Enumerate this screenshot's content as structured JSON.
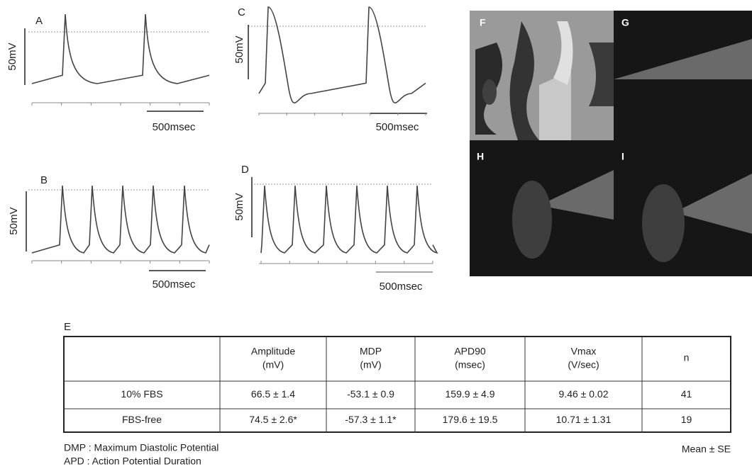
{
  "traces": [
    {
      "label": "A",
      "voltage_scale": "50mV",
      "time_scale": "500msec"
    },
    {
      "label": "B",
      "voltage_scale": "50mV",
      "time_scale": "500msec"
    },
    {
      "label": "C",
      "voltage_scale": "50mV",
      "time_scale": "500msec"
    },
    {
      "label": "D",
      "voltage_scale": "50mV",
      "time_scale": "500msec"
    }
  ],
  "images": [
    {
      "label": "F"
    },
    {
      "label": "G"
    },
    {
      "label": "H"
    },
    {
      "label": "I"
    }
  ],
  "table": {
    "label": "E",
    "header": [
      [
        "Amplitude",
        "(mV)"
      ],
      [
        "MDP",
        "(mV)"
      ],
      [
        "APD90",
        "(msec)"
      ],
      [
        "Vmax",
        "(V/sec)"
      ],
      [
        "n"
      ]
    ],
    "rows": [
      [
        "10% FBS",
        "66.5 ± 1.4",
        "-53.1 ± 0.9",
        "159.9 ± 4.9",
        "9.46 ± 0.02",
        "41"
      ],
      [
        "FBS-free",
        "74.5 ± 2.6*",
        "-57.3 ± 1.1*",
        "179.6 ± 19.5",
        "10.71 ± 1.31",
        "19"
      ]
    ]
  },
  "notes": [
    "DMP : Maximum Diastolic Potential",
    "APD : Action Potential Duration"
  ],
  "summary": "Mean ± SE"
}
